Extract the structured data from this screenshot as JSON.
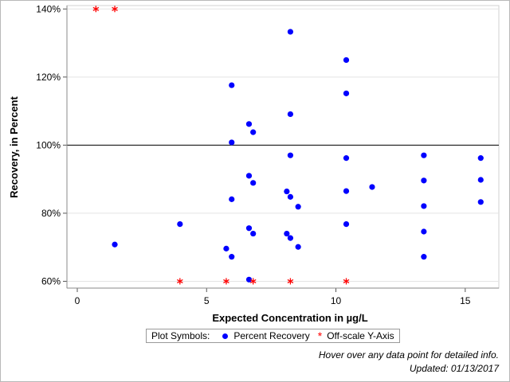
{
  "chart_data": {
    "type": "scatter",
    "xlabel": "Expected Concentration in µg/L",
    "ylabel": "Recovery, in Percent",
    "xlim": [
      -0.4,
      16.3
    ],
    "ylim": [
      58,
      141
    ],
    "x_ticks": [
      0,
      5,
      10,
      15
    ],
    "x_tick_labels": [
      "0",
      "5",
      "10",
      "15"
    ],
    "y_ticks": [
      60,
      80,
      100,
      120,
      140
    ],
    "y_tick_labels": [
      "60%",
      "80%",
      "100%",
      "120%",
      "140%"
    ],
    "grid": true,
    "reference_line_y": 100,
    "series": [
      {
        "name": "Percent Recovery",
        "color": "#0000ff",
        "marker": "circle",
        "points": [
          [
            1.45,
            70.8
          ],
          [
            3.97,
            76.8
          ],
          [
            5.97,
            117.6
          ],
          [
            5.97,
            100.8
          ],
          [
            5.97,
            84.1
          ],
          [
            5.97,
            67.2
          ],
          [
            5.76,
            69.6
          ],
          [
            6.64,
            106.2
          ],
          [
            6.64,
            91.0
          ],
          [
            6.64,
            75.6
          ],
          [
            6.64,
            60.5
          ],
          [
            6.8,
            103.8
          ],
          [
            6.8,
            88.9
          ],
          [
            6.8,
            74.0
          ],
          [
            8.1,
            86.4
          ],
          [
            8.1,
            74.0
          ],
          [
            8.24,
            133.3
          ],
          [
            8.24,
            109.1
          ],
          [
            8.24,
            97.0
          ],
          [
            8.24,
            84.8
          ],
          [
            8.24,
            72.7
          ],
          [
            8.54,
            81.9
          ],
          [
            8.54,
            70.1
          ],
          [
            10.4,
            125.0
          ],
          [
            10.4,
            115.2
          ],
          [
            10.4,
            96.2
          ],
          [
            10.4,
            86.5
          ],
          [
            10.4,
            76.8
          ],
          [
            11.4,
            87.7
          ],
          [
            13.4,
            97.0
          ],
          [
            13.4,
            89.6
          ],
          [
            13.4,
            82.1
          ],
          [
            13.4,
            74.6
          ],
          [
            13.4,
            67.2
          ],
          [
            15.6,
            96.2
          ],
          [
            15.6,
            89.8
          ],
          [
            15.6,
            83.3
          ]
        ]
      },
      {
        "name": "Off-scale Y-Axis",
        "color": "#ff0000",
        "marker": "asterisk",
        "points": [
          [
            0.72,
            140
          ],
          [
            1.45,
            140
          ],
          [
            3.97,
            60
          ],
          [
            5.76,
            60
          ],
          [
            6.8,
            60
          ],
          [
            8.24,
            60
          ],
          [
            10.4,
            60
          ]
        ]
      }
    ]
  },
  "legend": {
    "title": "Plot Symbols:",
    "items": [
      "Percent Recovery",
      "Off-scale Y-Axis"
    ]
  },
  "notes": {
    "hover": "Hover over any data point for detailed info.",
    "updated": "Updated: 01/13/2017"
  }
}
